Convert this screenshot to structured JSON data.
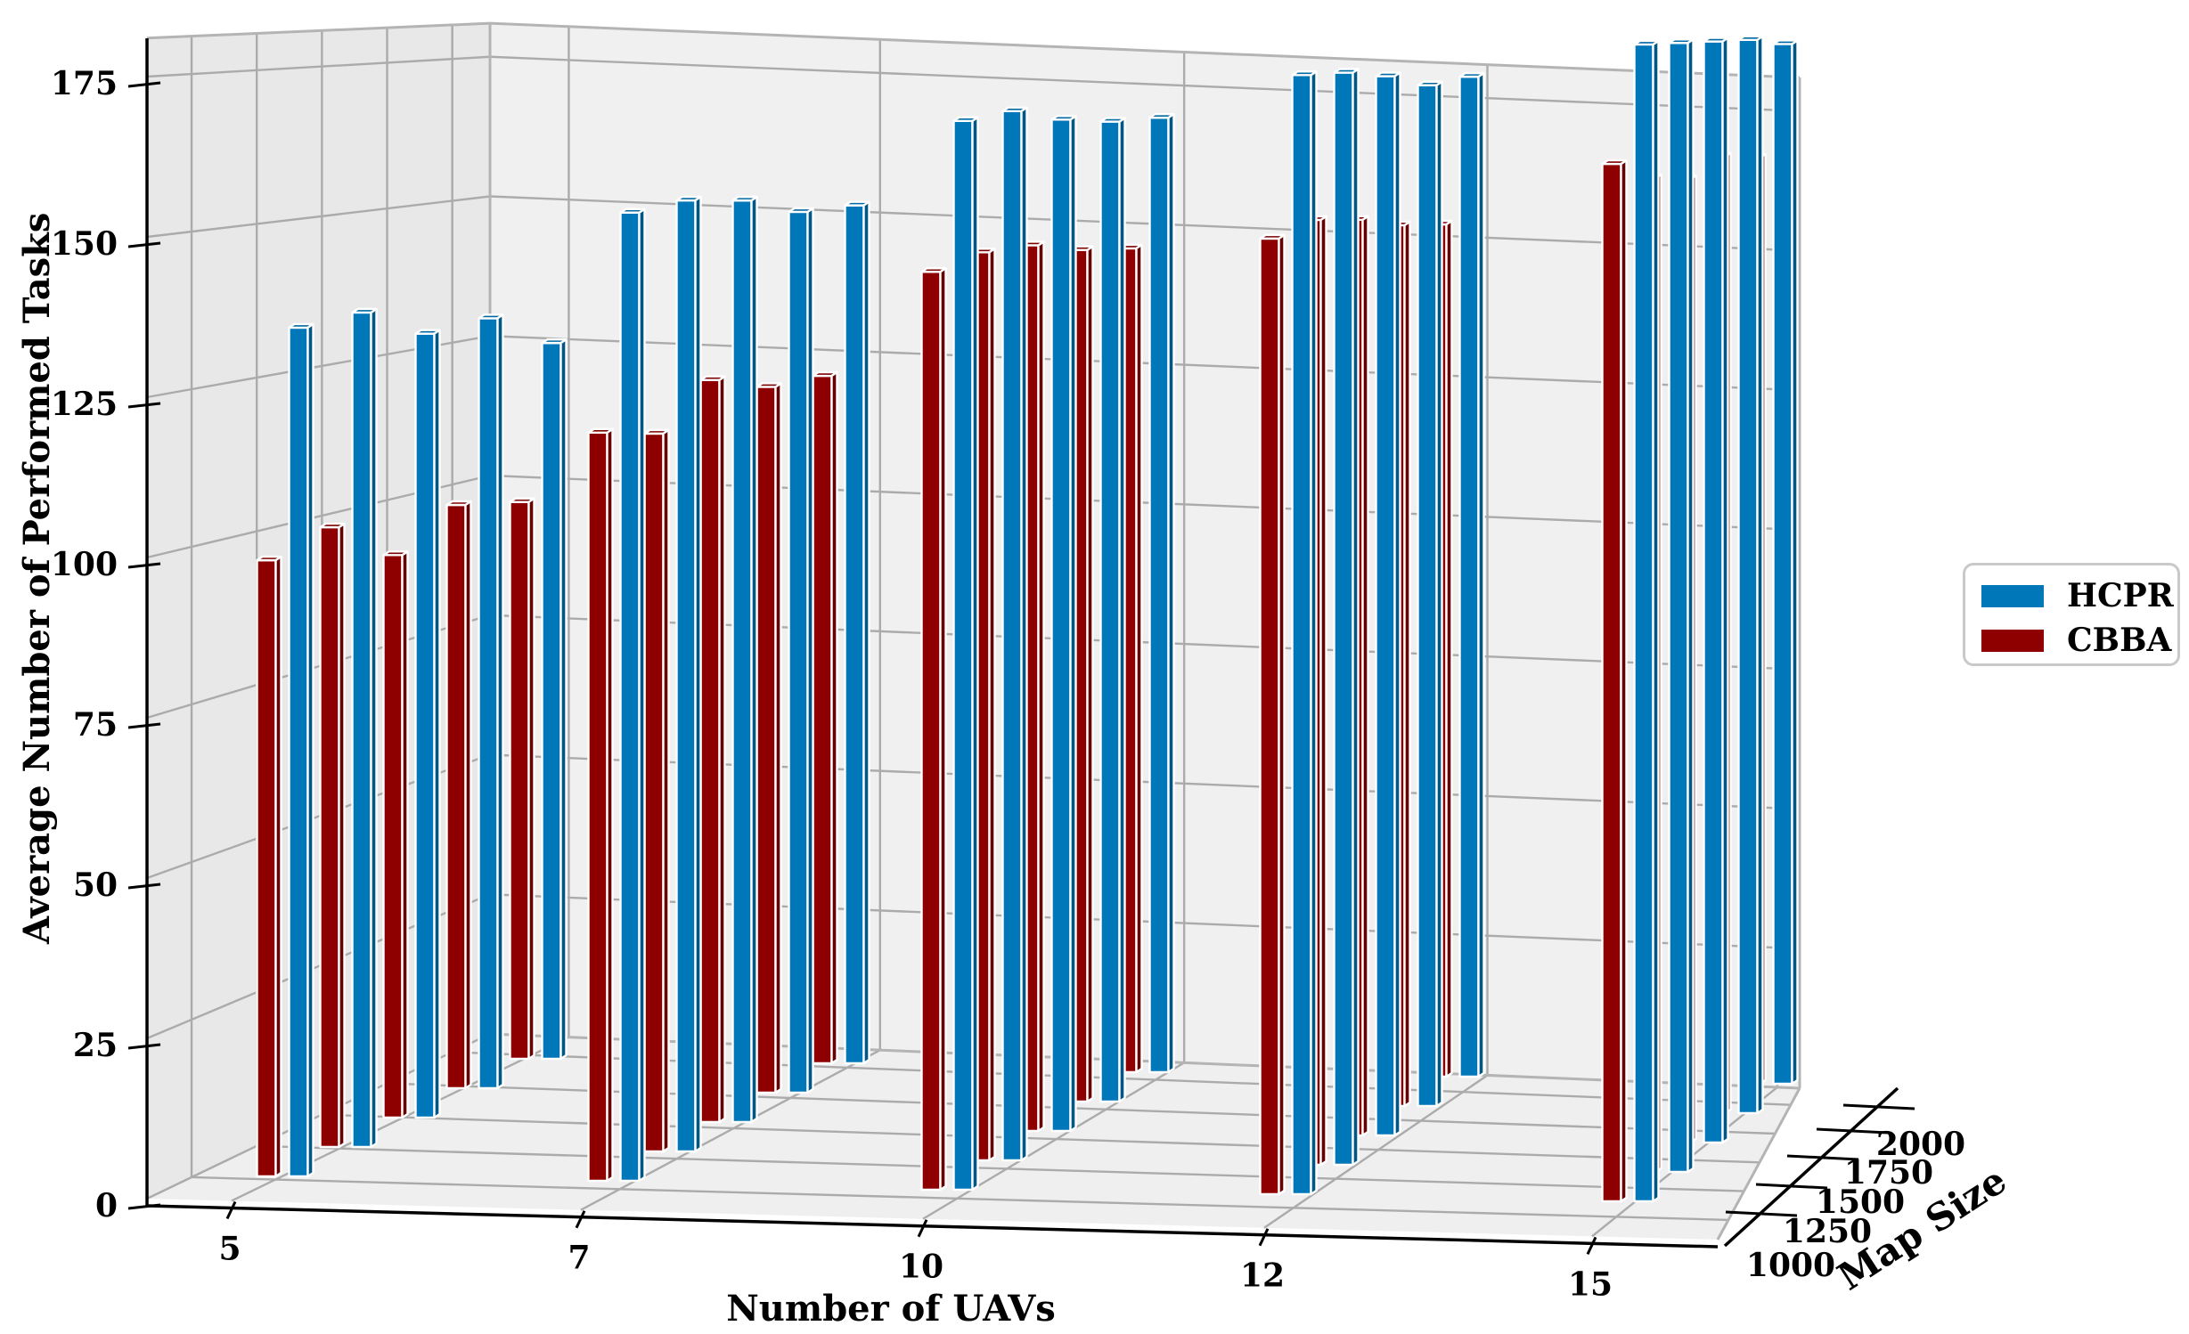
{
  "chart_data": {
    "type": "bar",
    "subtype": "3d-grouped-bars",
    "xlabel": "Number of UAVs",
    "ylabel": "Map Size",
    "zlabel": "Average Number of Performed Tasks",
    "x_categories": [
      5,
      7,
      10,
      12,
      15
    ],
    "y_categories": [
      1000,
      1250,
      1500,
      1750,
      2000
    ],
    "z_ticks": [
      0,
      25,
      50,
      75,
      100,
      125,
      150,
      175
    ],
    "zlim": [
      0,
      175
    ],
    "grid": true,
    "legend_position": "center-right",
    "series": [
      {
        "name": "HCPR",
        "color": "#0077b8",
        "note": "values[uav_index][map_index], maps ordered 1000,1250,1500,1750,2000",
        "values": [
          [
            126,
            132,
            131,
            136,
            135
          ],
          [
            151,
            151,
            154,
            155,
            154
          ],
          [
            168,
            168,
            169,
            171,
            170
          ],
          [
            176,
            175,
            177,
            178,
            178
          ],
          [
            183,
            184,
            184,
            184,
            184
          ]
        ]
      },
      {
        "name": "CBBA",
        "color": "#8e0000",
        "note": "values[uav_index][map_index], maps ordered 1000,1250,1500,1750,2000",
        "values": [
          [
            98,
            100,
            94,
            101,
            98
          ],
          [
            121,
            121,
            124,
            117,
            119
          ],
          [
            145,
            146,
            148,
            148,
            146
          ],
          [
            150,
            151,
            153,
            154,
            152
          ],
          [
            163,
            164,
            161,
            162,
            165
          ]
        ]
      }
    ],
    "colors": {
      "pane_left": "#e8e8e9",
      "pane_back": "#f0f0f1",
      "pane_floor": "#efeff0",
      "grid_line": "#ababab",
      "axis_line": "#000000",
      "bar_edge": "#ffffff",
      "background": "#ffffff"
    }
  },
  "legend": {
    "entries": [
      {
        "label": "HCPR",
        "color": "#0077b8"
      },
      {
        "label": "CBBA",
        "color": "#8e0000"
      }
    ]
  }
}
